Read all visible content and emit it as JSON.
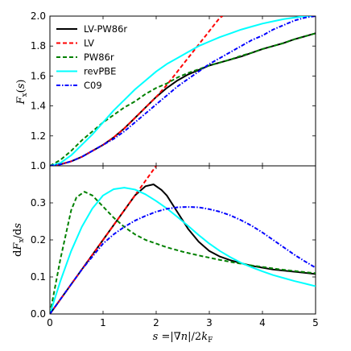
{
  "chart_data": [
    {
      "type": "line",
      "panel": "top",
      "xlabel": "",
      "ylabel": "F_x(s)",
      "xlim": [
        0,
        5
      ],
      "ylim": [
        1.0,
        2.0
      ],
      "yticks": [
        "1.0",
        "1.2",
        "1.4",
        "1.6",
        "1.8",
        "2.0"
      ],
      "grid": false,
      "legend": "top-left",
      "series": [
        {
          "name": "LV-PW86r",
          "color": "#000000",
          "style": "solid",
          "x": [
            0,
            0.2,
            0.4,
            0.6,
            0.8,
            1.0,
            1.2,
            1.4,
            1.6,
            1.8,
            2.0,
            2.2,
            2.4,
            2.6,
            2.8,
            3.0,
            3.2,
            3.4,
            3.6,
            3.8,
            4.0,
            4.2,
            4.4,
            4.6,
            4.8,
            5.0
          ],
          "y": [
            1.0,
            1.01,
            1.03,
            1.06,
            1.1,
            1.14,
            1.19,
            1.25,
            1.32,
            1.39,
            1.46,
            1.52,
            1.57,
            1.61,
            1.64,
            1.67,
            1.69,
            1.71,
            1.73,
            1.755,
            1.78,
            1.8,
            1.82,
            1.845,
            1.865,
            1.885
          ]
        },
        {
          "name": "LV",
          "color": "#ff0000",
          "style": "dashed",
          "x": [
            0,
            0.2,
            0.4,
            0.6,
            0.8,
            1.0,
            1.2,
            1.4,
            1.6,
            1.8,
            2.0,
            2.2,
            2.4,
            2.6,
            2.8,
            3.0,
            3.2,
            3.25
          ],
          "y": [
            1.0,
            1.01,
            1.03,
            1.06,
            1.1,
            1.14,
            1.19,
            1.25,
            1.32,
            1.39,
            1.46,
            1.54,
            1.63,
            1.72,
            1.81,
            1.9,
            1.99,
            2.0
          ]
        },
        {
          "name": "PW86r",
          "color": "#008000",
          "style": "dashed",
          "x": [
            0,
            0.2,
            0.4,
            0.6,
            0.8,
            1.0,
            1.2,
            1.4,
            1.6,
            1.8,
            2.0,
            2.2,
            2.4,
            2.6,
            2.8,
            3.0,
            3.2,
            3.4,
            3.6,
            3.8,
            4.0,
            4.2,
            4.4,
            4.6,
            4.8,
            5.0
          ],
          "y": [
            1.0,
            1.04,
            1.1,
            1.17,
            1.23,
            1.29,
            1.34,
            1.39,
            1.43,
            1.48,
            1.52,
            1.55,
            1.59,
            1.62,
            1.645,
            1.67,
            1.69,
            1.71,
            1.735,
            1.755,
            1.78,
            1.8,
            1.82,
            1.845,
            1.865,
            1.885
          ]
        },
        {
          "name": "revPBE",
          "color": "#00ffff",
          "style": "solid",
          "x": [
            0,
            0.2,
            0.4,
            0.6,
            0.8,
            1.0,
            1.2,
            1.4,
            1.6,
            1.8,
            2.0,
            2.2,
            2.4,
            2.6,
            2.8,
            3.0,
            3.2,
            3.4,
            3.6,
            3.8,
            4.0,
            4.2,
            4.4,
            4.6,
            4.8,
            5.0
          ],
          "y": [
            1.0,
            1.02,
            1.07,
            1.14,
            1.21,
            1.29,
            1.37,
            1.44,
            1.51,
            1.57,
            1.63,
            1.68,
            1.72,
            1.76,
            1.8,
            1.83,
            1.86,
            1.885,
            1.91,
            1.93,
            1.95,
            1.965,
            1.98,
            1.99,
            2.0,
            2.0
          ]
        },
        {
          "name": "C09",
          "color": "#0000ff",
          "style": "dashdot",
          "x": [
            0,
            0.2,
            0.4,
            0.6,
            0.8,
            1.0,
            1.2,
            1.4,
            1.6,
            1.8,
            2.0,
            2.2,
            2.4,
            2.6,
            2.8,
            3.0,
            3.2,
            3.4,
            3.6,
            3.8,
            4.0,
            4.2,
            4.4,
            4.6,
            4.8,
            5.0
          ],
          "y": [
            1.0,
            1.01,
            1.03,
            1.06,
            1.1,
            1.14,
            1.18,
            1.23,
            1.29,
            1.35,
            1.41,
            1.47,
            1.53,
            1.58,
            1.63,
            1.68,
            1.72,
            1.76,
            1.8,
            1.84,
            1.87,
            1.91,
            1.94,
            1.97,
            1.99,
            2.0
          ]
        }
      ]
    },
    {
      "type": "line",
      "panel": "bottom",
      "xlabel": "s = |∇n|/2k_F",
      "ylabel": "dF_x/ds",
      "xlim": [
        0,
        5
      ],
      "ylim": [
        0.0,
        0.4
      ],
      "xticks": [
        "0",
        "1",
        "2",
        "3",
        "4",
        "5"
      ],
      "yticks": [
        "0.0",
        "0.1",
        "0.2",
        "0.3"
      ],
      "grid": false,
      "series": [
        {
          "name": "LV-PW86r",
          "color": "#000000",
          "style": "solid",
          "x": [
            0,
            0.2,
            0.4,
            0.6,
            0.8,
            1.0,
            1.2,
            1.4,
            1.6,
            1.8,
            1.95,
            2.1,
            2.2,
            2.4,
            2.6,
            2.8,
            3.0,
            3.2,
            3.4,
            3.6,
            3.8,
            4.0,
            4.2,
            4.4,
            4.6,
            4.8,
            5.0
          ],
          "y": [
            0.0,
            0.04,
            0.08,
            0.12,
            0.16,
            0.2,
            0.24,
            0.28,
            0.32,
            0.345,
            0.35,
            0.335,
            0.32,
            0.275,
            0.23,
            0.195,
            0.17,
            0.155,
            0.145,
            0.137,
            0.13,
            0.125,
            0.12,
            0.117,
            0.114,
            0.111,
            0.108
          ]
        },
        {
          "name": "LV",
          "color": "#ff0000",
          "style": "dashed",
          "x": [
            0,
            0.2,
            0.4,
            0.6,
            0.8,
            1.0,
            1.2,
            1.4,
            1.6,
            1.8,
            2.0,
            2.1
          ],
          "y": [
            0.0,
            0.04,
            0.08,
            0.12,
            0.16,
            0.2,
            0.24,
            0.28,
            0.32,
            0.36,
            0.4,
            0.42
          ]
        },
        {
          "name": "PW86r",
          "color": "#008000",
          "style": "dashed",
          "x": [
            0,
            0.2,
            0.4,
            0.5,
            0.65,
            0.8,
            1.0,
            1.2,
            1.4,
            1.6,
            1.8,
            2.0,
            2.2,
            2.5,
            2.8,
            3.0,
            3.2,
            3.5,
            3.8,
            4.0,
            4.3,
            4.6,
            5.0
          ],
          "y": [
            0.0,
            0.15,
            0.28,
            0.315,
            0.33,
            0.32,
            0.29,
            0.26,
            0.235,
            0.215,
            0.2,
            0.19,
            0.18,
            0.168,
            0.158,
            0.152,
            0.146,
            0.138,
            0.131,
            0.127,
            0.121,
            0.116,
            0.11
          ]
        },
        {
          "name": "revPBE",
          "color": "#00ffff",
          "style": "solid",
          "x": [
            0,
            0.2,
            0.4,
            0.6,
            0.8,
            1.0,
            1.2,
            1.4,
            1.6,
            1.8,
            2.0,
            2.2,
            2.4,
            2.6,
            2.8,
            3.0,
            3.2,
            3.4,
            3.6,
            3.8,
            4.0,
            4.2,
            4.4,
            4.6,
            4.8,
            5.0
          ],
          "y": [
            0.0,
            0.09,
            0.17,
            0.235,
            0.285,
            0.32,
            0.337,
            0.341,
            0.336,
            0.323,
            0.305,
            0.285,
            0.262,
            0.238,
            0.213,
            0.19,
            0.17,
            0.153,
            0.138,
            0.126,
            0.115,
            0.105,
            0.097,
            0.089,
            0.082,
            0.075
          ]
        },
        {
          "name": "C09",
          "color": "#0000ff",
          "style": "dashdot",
          "x": [
            0,
            0.2,
            0.4,
            0.6,
            0.8,
            1.0,
            1.2,
            1.4,
            1.6,
            1.8,
            2.0,
            2.2,
            2.4,
            2.6,
            2.8,
            3.0,
            3.2,
            3.4,
            3.6,
            3.8,
            4.0,
            4.2,
            4.4,
            4.6,
            4.8,
            5.0
          ],
          "y": [
            0.0,
            0.04,
            0.08,
            0.12,
            0.155,
            0.19,
            0.215,
            0.235,
            0.252,
            0.265,
            0.276,
            0.284,
            0.288,
            0.289,
            0.288,
            0.283,
            0.276,
            0.266,
            0.253,
            0.238,
            0.22,
            0.2,
            0.18,
            0.16,
            0.142,
            0.125
          ]
        }
      ]
    }
  ]
}
